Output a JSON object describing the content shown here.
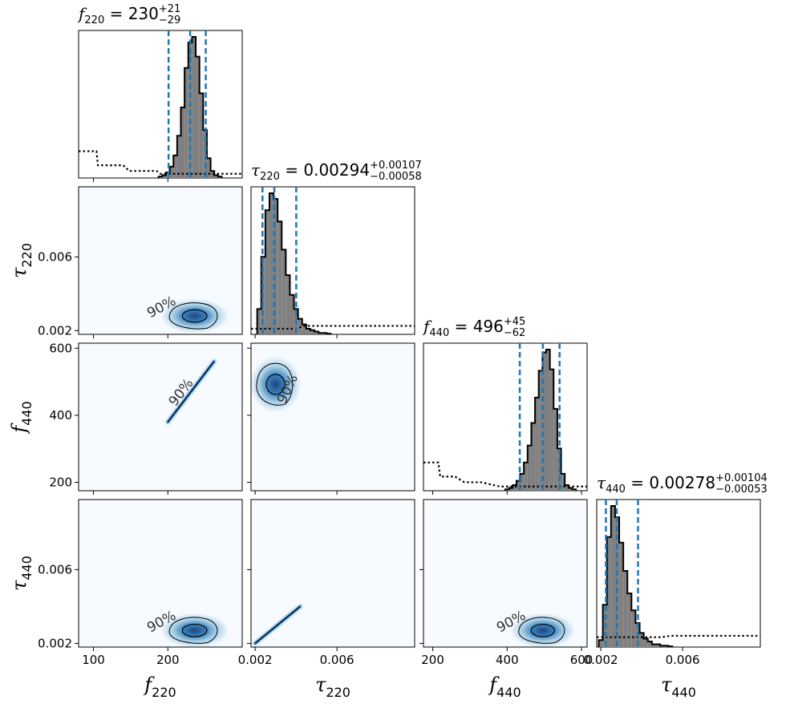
{
  "chart_data": {
    "type": "corner",
    "parameters": [
      {
        "key": "f220",
        "symbol": "f",
        "subscript": "220",
        "range": [
          80,
          300
        ],
        "ticks": [
          {
            "v": 100,
            "label": "100"
          },
          {
            "v": 200,
            "label": "200"
          }
        ]
      },
      {
        "key": "tau220",
        "symbol": "τ",
        "subscript": "220",
        "range": [
          0.0018,
          0.0098
        ],
        "ticks": [
          {
            "v": 0.002,
            "label": "0.002"
          },
          {
            "v": 0.006,
            "label": "0.006"
          }
        ]
      },
      {
        "key": "f440",
        "symbol": "f",
        "subscript": "440",
        "range": [
          175,
          615
        ],
        "ticks": [
          {
            "v": 200,
            "label": "200"
          },
          {
            "v": 400,
            "label": "400"
          },
          {
            "v": 600,
            "label": "600"
          }
        ]
      },
      {
        "key": "tau440",
        "symbol": "τ",
        "subscript": "440",
        "range": [
          0.0018,
          0.0098
        ],
        "ticks": [
          {
            "v": 0.002,
            "label": "0.002"
          },
          {
            "v": 0.006,
            "label": "0.006"
          }
        ]
      }
    ],
    "diagonal": [
      {
        "param": "f220",
        "title": {
          "symbol": "f",
          "sub": "220",
          "median": "230",
          "plus": "+21",
          "minus": "−29"
        },
        "median": 230,
        "lower": 201,
        "upper": 251,
        "hist_x": [
          190,
          195,
          200,
          205,
          210,
          215,
          220,
          225,
          230,
          235,
          240,
          245,
          250,
          255,
          260,
          265,
          270
        ],
        "hist_y": [
          0.01,
          0.02,
          0.04,
          0.08,
          0.16,
          0.3,
          0.5,
          0.78,
          0.96,
          1.0,
          0.86,
          0.6,
          0.34,
          0.14,
          0.05,
          0.02,
          0.01
        ],
        "prior_x": [
          80,
          104,
          106,
          140,
          148,
          185,
          190,
          300
        ],
        "prior_y": [
          0.19,
          0.19,
          0.09,
          0.09,
          0.05,
          0.05,
          0.03,
          0.03
        ]
      },
      {
        "param": "tau220",
        "title": {
          "symbol": "τ",
          "sub": "220",
          "median": "0.00294",
          "plus": "+0.00107",
          "minus": "−0.00058"
        },
        "median": 0.00294,
        "lower": 0.00236,
        "upper": 0.00401,
        "hist_x": [
          0.0022,
          0.0024,
          0.0026,
          0.0028,
          0.003,
          0.0032,
          0.0034,
          0.0036,
          0.0038,
          0.004,
          0.0042,
          0.0044,
          0.0046,
          0.0048,
          0.005,
          0.0052,
          0.0054,
          0.0056
        ],
        "hist_y": [
          0.18,
          0.55,
          0.88,
          1.0,
          0.96,
          0.8,
          0.6,
          0.42,
          0.28,
          0.18,
          0.11,
          0.07,
          0.04,
          0.03,
          0.02,
          0.01,
          0.01,
          0.005
        ],
        "prior_x": [
          0.0018,
          0.004,
          0.0044,
          0.0098
        ],
        "prior_y": [
          0.04,
          0.04,
          0.06,
          0.06
        ]
      },
      {
        "param": "f440",
        "title": {
          "symbol": "f",
          "sub": "440",
          "median": "496",
          "plus": "+45",
          "minus": "−62"
        },
        "median": 496,
        "lower": 434,
        "upper": 541,
        "hist_x": [
          400,
          410,
          420,
          430,
          440,
          450,
          460,
          470,
          480,
          490,
          500,
          510,
          520,
          530,
          540,
          550,
          560,
          570,
          580
        ],
        "hist_y": [
          0.01,
          0.02,
          0.04,
          0.07,
          0.12,
          0.2,
          0.32,
          0.48,
          0.66,
          0.85,
          0.98,
          1.0,
          0.86,
          0.58,
          0.3,
          0.12,
          0.04,
          0.02,
          0.01
        ],
        "prior_x": [
          175,
          215,
          220,
          260,
          285,
          330,
          380,
          615
        ],
        "prior_y": [
          0.2,
          0.2,
          0.1,
          0.1,
          0.06,
          0.06,
          0.03,
          0.03
        ]
      },
      {
        "param": "tau440",
        "title": {
          "symbol": "τ",
          "sub": "440",
          "median": "0.00278",
          "plus": "+0.00104",
          "minus": "−0.00053"
        },
        "median": 0.00278,
        "lower": 0.00225,
        "upper": 0.00382,
        "hist_x": [
          0.002,
          0.0022,
          0.0024,
          0.0026,
          0.0028,
          0.003,
          0.0032,
          0.0034,
          0.0036,
          0.0038,
          0.004,
          0.0042,
          0.0044,
          0.0046,
          0.0048,
          0.005,
          0.0052,
          0.0054
        ],
        "hist_y": [
          0.05,
          0.3,
          0.78,
          1.0,
          0.92,
          0.74,
          0.54,
          0.38,
          0.26,
          0.17,
          0.1,
          0.06,
          0.04,
          0.02,
          0.02,
          0.01,
          0.01,
          0.005
        ],
        "prior_x": [
          0.0018,
          0.005,
          0.0054,
          0.0098
        ],
        "prior_y": [
          0.07,
          0.07,
          0.08,
          0.08
        ]
      }
    ],
    "off_diagonal": [
      {
        "row": 1,
        "col": 0,
        "label": "90%",
        "shape": "blob",
        "center": [
          236,
          0.0028
        ],
        "spread": [
          22,
          0.00045
        ]
      },
      {
        "row": 2,
        "col": 0,
        "label": "90%",
        "shape": "line",
        "from": [
          200,
          380
        ],
        "to": [
          262,
          560
        ]
      },
      {
        "row": 2,
        "col": 1,
        "label": "90%",
        "shape": "blob",
        "center": [
          0.003,
          492
        ],
        "spread": [
          0.0006,
          40
        ]
      },
      {
        "row": 3,
        "col": 0,
        "label": "90%",
        "shape": "blob",
        "center": [
          236,
          0.0027
        ],
        "spread": [
          22,
          0.00045
        ]
      },
      {
        "row": 3,
        "col": 1,
        "label": "",
        "shape": "line",
        "from": [
          0.002,
          0.002
        ],
        "to": [
          0.0042,
          0.004
        ]
      },
      {
        "row": 3,
        "col": 2,
        "label": "90%",
        "shape": "blob",
        "center": [
          496,
          0.0027
        ],
        "spread": [
          42,
          0.00045
        ]
      }
    ],
    "colors": {
      "hist_fill": "#808080",
      "quantile_line": "#1f77b4",
      "density_dark": "#08306b",
      "density_mid": "#2171b5",
      "density_light": "#deebf7",
      "contour": "#000000"
    }
  }
}
